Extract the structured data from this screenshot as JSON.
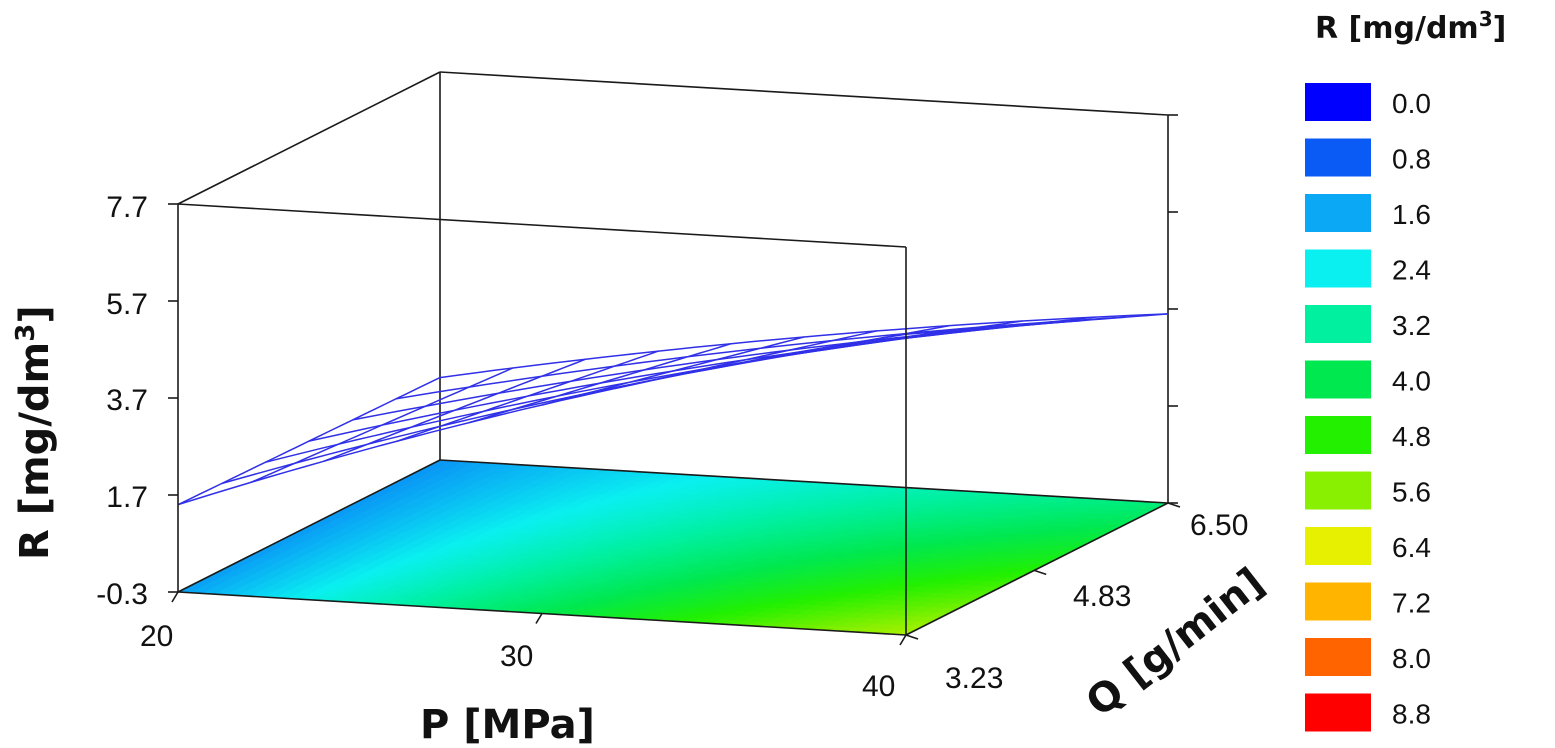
{
  "chart_data": {
    "type": "surface",
    "xlabel": "P [MPa]",
    "ylabel": "Q [g/min]",
    "zlabel_main": "R [mg/dm",
    "zlabel_sup": "3",
    "zlabel_end": "]",
    "x_ticks": [
      "20",
      "30",
      "40"
    ],
    "y_ticks": [
      "3.23",
      "4.83",
      "6.50"
    ],
    "z_ticks": [
      "-0.3",
      "1.7",
      "3.7",
      "5.7",
      "7.7"
    ],
    "xlim": [
      20,
      40
    ],
    "ylim": [
      3.23,
      6.5
    ],
    "zlim": [
      -0.3,
      7.7
    ],
    "mesh_color": "#3030e8",
    "surface_corners": {
      "P20_Q3.23": 1.5,
      "P40_Q3.23": 5.9,
      "P20_Q6.50": 1.4,
      "P40_Q6.50": 3.6
    },
    "legend": {
      "title_main": "R [mg/dm",
      "title_sup": "3",
      "title_end": "]",
      "position": "right",
      "entries": [
        {
          "label": "0.0",
          "color": "#0000ff"
        },
        {
          "label": "0.8",
          "color": "#0a5af5"
        },
        {
          "label": "1.6",
          "color": "#0aa8f5"
        },
        {
          "label": "2.4",
          "color": "#0af0f0"
        },
        {
          "label": "3.2",
          "color": "#00f0a0"
        },
        {
          "label": "4.0",
          "color": "#00e850"
        },
        {
          "label": "4.8",
          "color": "#22f000"
        },
        {
          "label": "5.6",
          "color": "#88f000"
        },
        {
          "label": "6.4",
          "color": "#e6f000"
        },
        {
          "label": "7.2",
          "color": "#ffb400"
        },
        {
          "label": "8.0",
          "color": "#ff6400"
        },
        {
          "label": "8.8",
          "color": "#ff0000"
        }
      ]
    }
  }
}
